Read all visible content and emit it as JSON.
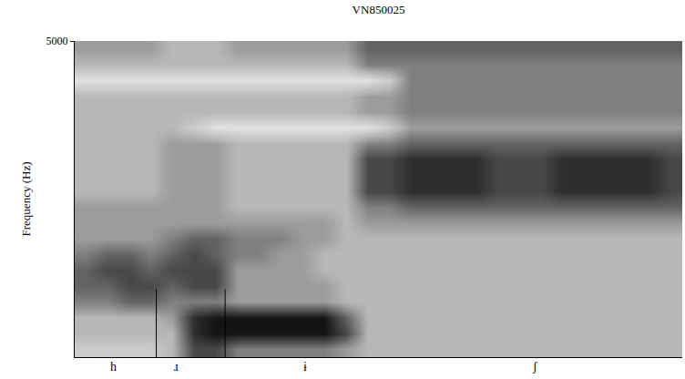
{
  "chart_data": {
    "type": "heatmap",
    "title": "VN850025",
    "y_label": "Frequency (Hz)",
    "x": [
      0,
      1,
      2,
      3,
      4,
      5,
      6,
      7,
      8,
      9,
      10,
      11,
      12,
      13,
      14,
      15,
      16,
      17,
      18,
      19,
      20,
      21,
      22,
      23,
      24,
      25,
      26,
      27
    ],
    "y": [
      125,
      375,
      625,
      875,
      1125,
      1375,
      1625,
      1875,
      2125,
      2375,
      2625,
      2875,
      3125,
      3375,
      3625,
      3875,
      4125,
      4375,
      4625,
      4875
    ],
    "z": [
      [
        2,
        2,
        2,
        2,
        3,
        7,
        7,
        5,
        5,
        5,
        5,
        5,
        4,
        3,
        3,
        3,
        3,
        3,
        3,
        3,
        3,
        3,
        3,
        3,
        3,
        3,
        3,
        3
      ],
      [
        3,
        3,
        3,
        3,
        3,
        8,
        9,
        9,
        9,
        9,
        9,
        9,
        7,
        3,
        3,
        3,
        3,
        3,
        3,
        3,
        3,
        3,
        3,
        3,
        3,
        3,
        3,
        3
      ],
      [
        3,
        3,
        3,
        3,
        4,
        8,
        9,
        9,
        9,
        9,
        9,
        9,
        6,
        3,
        3,
        3,
        3,
        3,
        3,
        3,
        3,
        3,
        3,
        3,
        3,
        3,
        3,
        3
      ],
      [
        5,
        5,
        6,
        6,
        5,
        5,
        5,
        4,
        4,
        4,
        4,
        4,
        3,
        3,
        3,
        3,
        3,
        3,
        3,
        3,
        3,
        3,
        3,
        3,
        3,
        3,
        3,
        3
      ],
      [
        6,
        6,
        7,
        7,
        6,
        7,
        7,
        4,
        4,
        4,
        4,
        4,
        3,
        3,
        3,
        3,
        3,
        3,
        3,
        3,
        3,
        3,
        3,
        3,
        3,
        3,
        3,
        3
      ],
      [
        6,
        7,
        7,
        6,
        7,
        7,
        7,
        4,
        4,
        4,
        4,
        3,
        3,
        3,
        3,
        3,
        3,
        3,
        3,
        3,
        3,
        3,
        3,
        3,
        3,
        3,
        3,
        3
      ],
      [
        5,
        6,
        6,
        5,
        6,
        7,
        6,
        5,
        5,
        4,
        4,
        3,
        3,
        3,
        3,
        3,
        3,
        3,
        3,
        3,
        3,
        3,
        3,
        3,
        3,
        3,
        3,
        3
      ],
      [
        4,
        4,
        4,
        4,
        5,
        6,
        6,
        5,
        5,
        5,
        4,
        4,
        3,
        3,
        3,
        3,
        3,
        3,
        3,
        3,
        3,
        3,
        3,
        3,
        3,
        3,
        3,
        3
      ],
      [
        4,
        4,
        4,
        4,
        4,
        4,
        4,
        4,
        4,
        4,
        4,
        4,
        3,
        4,
        4,
        4,
        4,
        4,
        4,
        4,
        4,
        4,
        4,
        4,
        4,
        4,
        4,
        4
      ],
      [
        4,
        4,
        4,
        4,
        4,
        4,
        4,
        3,
        3,
        3,
        3,
        3,
        3,
        5,
        5,
        6,
        6,
        6,
        6,
        6,
        6,
        6,
        6,
        6,
        6,
        6,
        6,
        6
      ],
      [
        3,
        3,
        3,
        3,
        4,
        4,
        4,
        3,
        3,
        3,
        3,
        3,
        3,
        7,
        7,
        8,
        8,
        8,
        8,
        7,
        7,
        7,
        8,
        8,
        8,
        8,
        8,
        7
      ],
      [
        3,
        3,
        3,
        3,
        4,
        4,
        4,
        3,
        3,
        3,
        3,
        3,
        3,
        7,
        7,
        8,
        8,
        8,
        8,
        7,
        7,
        7,
        8,
        8,
        8,
        8,
        8,
        7
      ],
      [
        3,
        3,
        3,
        3,
        4,
        4,
        4,
        3,
        3,
        3,
        3,
        3,
        3,
        7,
        7,
        8,
        8,
        8,
        8,
        7,
        7,
        7,
        8,
        8,
        8,
        8,
        8,
        7
      ],
      [
        3,
        3,
        3,
        3,
        4,
        4,
        4,
        3,
        3,
        3,
        3,
        3,
        3,
        5,
        5,
        6,
        6,
        6,
        6,
        6,
        6,
        6,
        6,
        6,
        6,
        6,
        6,
        6
      ],
      [
        3,
        3,
        3,
        3,
        3,
        2,
        1,
        1,
        1,
        1,
        1,
        1,
        1,
        1,
        2,
        4,
        4,
        4,
        4,
        4,
        4,
        4,
        4,
        4,
        4,
        4,
        4,
        4
      ],
      [
        3,
        3,
        3,
        3,
        3,
        3,
        3,
        3,
        3,
        3,
        3,
        3,
        3,
        4,
        4,
        5,
        5,
        5,
        5,
        5,
        5,
        5,
        5,
        5,
        5,
        5,
        5,
        5
      ],
      [
        3,
        3,
        3,
        3,
        3,
        3,
        3,
        3,
        3,
        3,
        3,
        3,
        3,
        4,
        4,
        5,
        5,
        5,
        5,
        5,
        5,
        5,
        5,
        5,
        5,
        5,
        5,
        5
      ],
      [
        1,
        1,
        1,
        1,
        1,
        1,
        1,
        1,
        1,
        1,
        1,
        1,
        1,
        1,
        2,
        5,
        5,
        5,
        5,
        5,
        5,
        5,
        5,
        5,
        5,
        5,
        5,
        5
      ],
      [
        3,
        3,
        3,
        3,
        3,
        3,
        3,
        3,
        3,
        3,
        3,
        3,
        3,
        5,
        5,
        5,
        5,
        5,
        5,
        5,
        5,
        5,
        5,
        5,
        5,
        5,
        5,
        5
      ],
      [
        4,
        4,
        4,
        4,
        3,
        3,
        3,
        4,
        4,
        4,
        4,
        4,
        4,
        6,
        6,
        6,
        6,
        6,
        6,
        6,
        6,
        6,
        6,
        6,
        6,
        6,
        6,
        6
      ]
    ],
    "zlim": [
      0,
      9
    ],
    "xlim": [
      -0.5,
      27.5
    ],
    "ylim": [
      0,
      5000
    ],
    "yticks": [
      5000
    ],
    "tick_labels": "y",
    "segments": [
      {
        "label": "h",
        "x": 1.3
      },
      {
        "label": "ɹ",
        "x": 4.2
      },
      {
        "label": "ɨ",
        "x": 10.1
      },
      {
        "label": "ʃ",
        "x": 20.7
      }
    ],
    "boundaries": [
      {
        "x": 3.26,
        "top": 1070
      },
      {
        "x": 6.43,
        "top": 1070
      }
    ]
  }
}
